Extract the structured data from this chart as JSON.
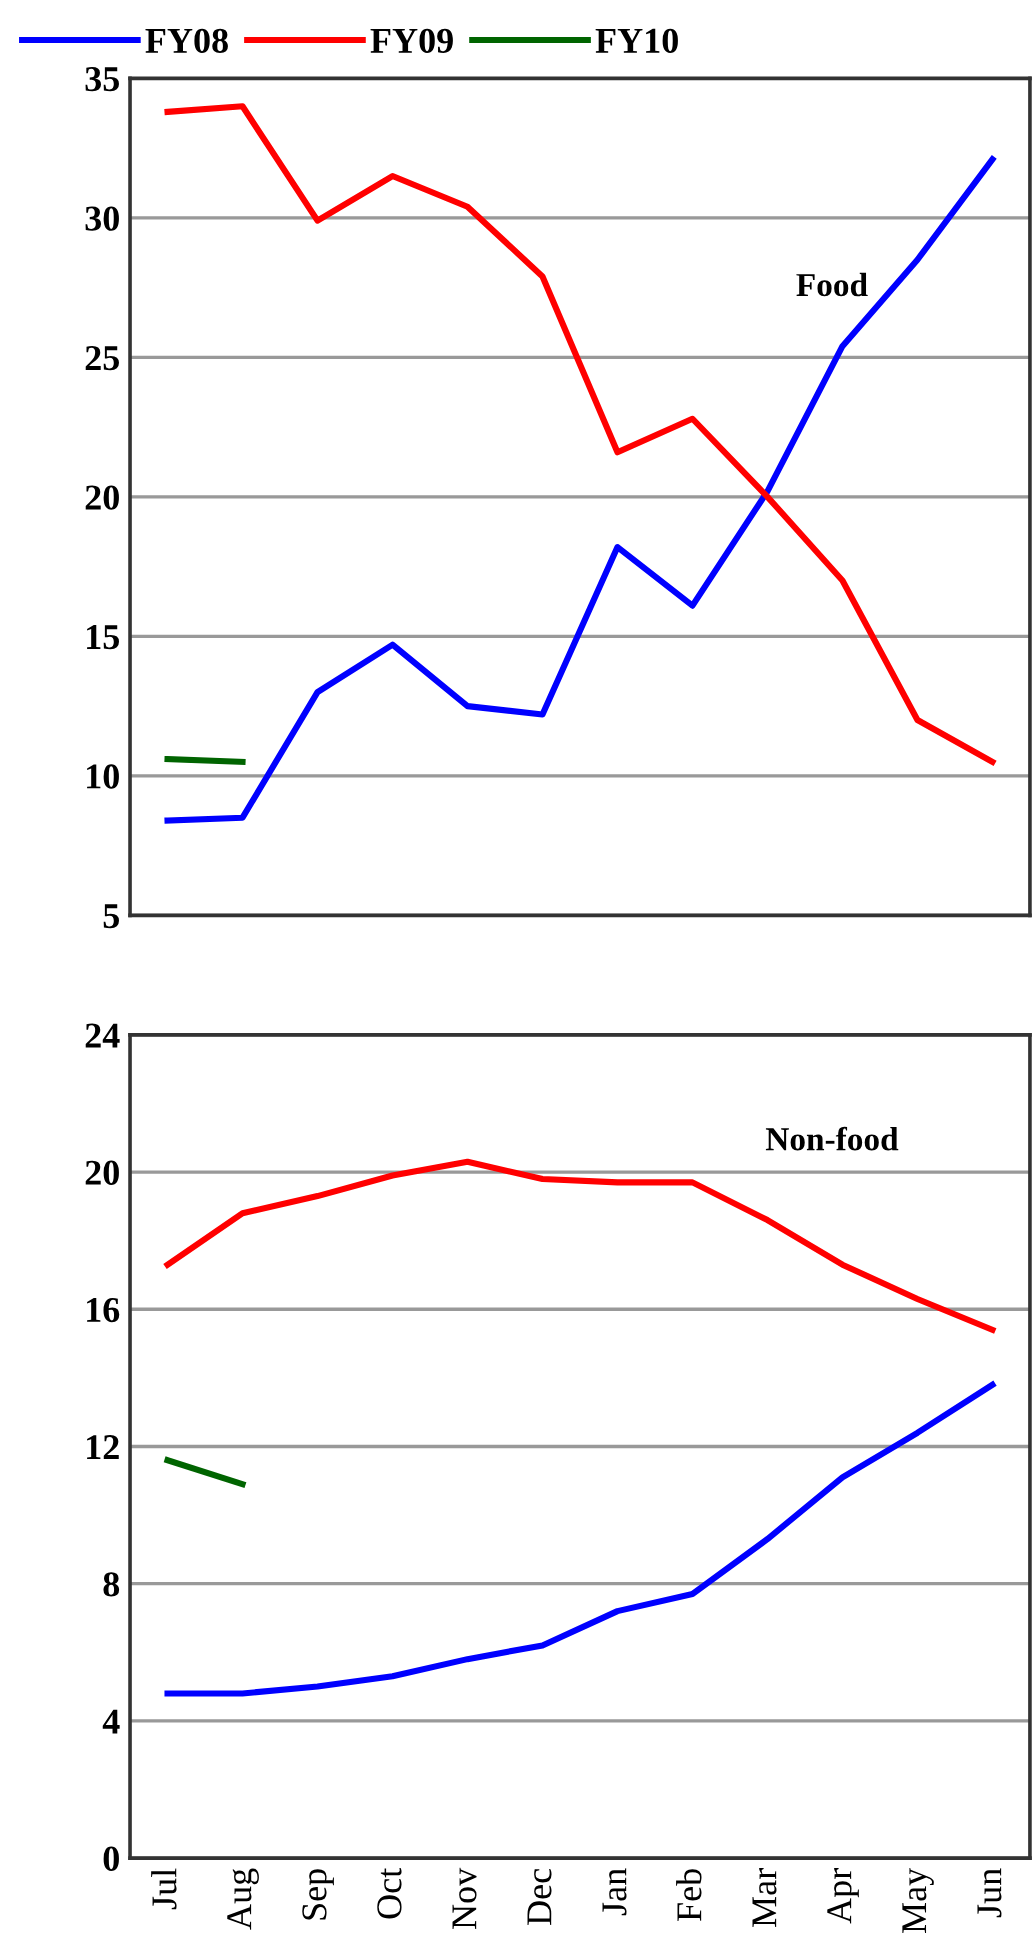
{
  "chart_data": [
    {
      "type": "line",
      "annotations": [
        "Food"
      ],
      "categories": [
        null,
        null,
        null,
        null,
        null,
        null,
        null,
        null,
        null,
        null,
        null,
        null
      ],
      "ylim": [
        5,
        35
      ],
      "yticks": [
        5,
        10,
        15,
        20,
        25,
        30,
        35
      ],
      "grid": "y",
      "legend": "top",
      "tick_labels": "y",
      "series": [
        {
          "name": "FY08",
          "color": "#0000ff",
          "values": [
            8.4,
            8.5,
            13.0,
            14.7,
            12.5,
            12.2,
            18.2,
            16.1,
            20.2,
            25.4,
            28.5,
            32.1
          ]
        },
        {
          "name": "FY09",
          "color": "#ff0000",
          "values": [
            33.8,
            34.0,
            29.9,
            31.5,
            30.4,
            27.9,
            21.6,
            22.8,
            20.0,
            17.0,
            12.0,
            10.5
          ]
        },
        {
          "name": "FY10",
          "color": "#006400",
          "values": [
            10.6,
            10.5,
            null,
            null,
            null,
            null,
            null,
            null,
            null,
            null,
            null,
            null
          ]
        }
      ]
    },
    {
      "type": "line",
      "annotations": [
        "Non-food"
      ],
      "categories": [
        "Jul",
        "Aug",
        "Sep",
        "Oct",
        "Nov",
        "Dec",
        "Jan",
        "Feb",
        "Mar",
        "Apr",
        "May",
        "Jun"
      ],
      "ylim": [
        0,
        24
      ],
      "yticks": [
        0,
        4,
        8,
        12,
        16,
        20,
        24
      ],
      "grid": "y",
      "series": [
        {
          "color": "#0000ff",
          "values": [
            4.8,
            4.8,
            5.0,
            5.3,
            5.8,
            6.2,
            7.2,
            7.7,
            9.3,
            11.1,
            12.4,
            13.8
          ]
        },
        {
          "color": "#ff0000",
          "values": [
            17.3,
            18.8,
            19.3,
            19.9,
            20.3,
            19.8,
            19.7,
            19.7,
            18.6,
            17.3,
            16.3,
            15.4
          ]
        },
        {
          "color": "#006400",
          "values": [
            11.6,
            10.9,
            null,
            null,
            null,
            null,
            null,
            null,
            null,
            null,
            null,
            null
          ]
        }
      ]
    }
  ]
}
